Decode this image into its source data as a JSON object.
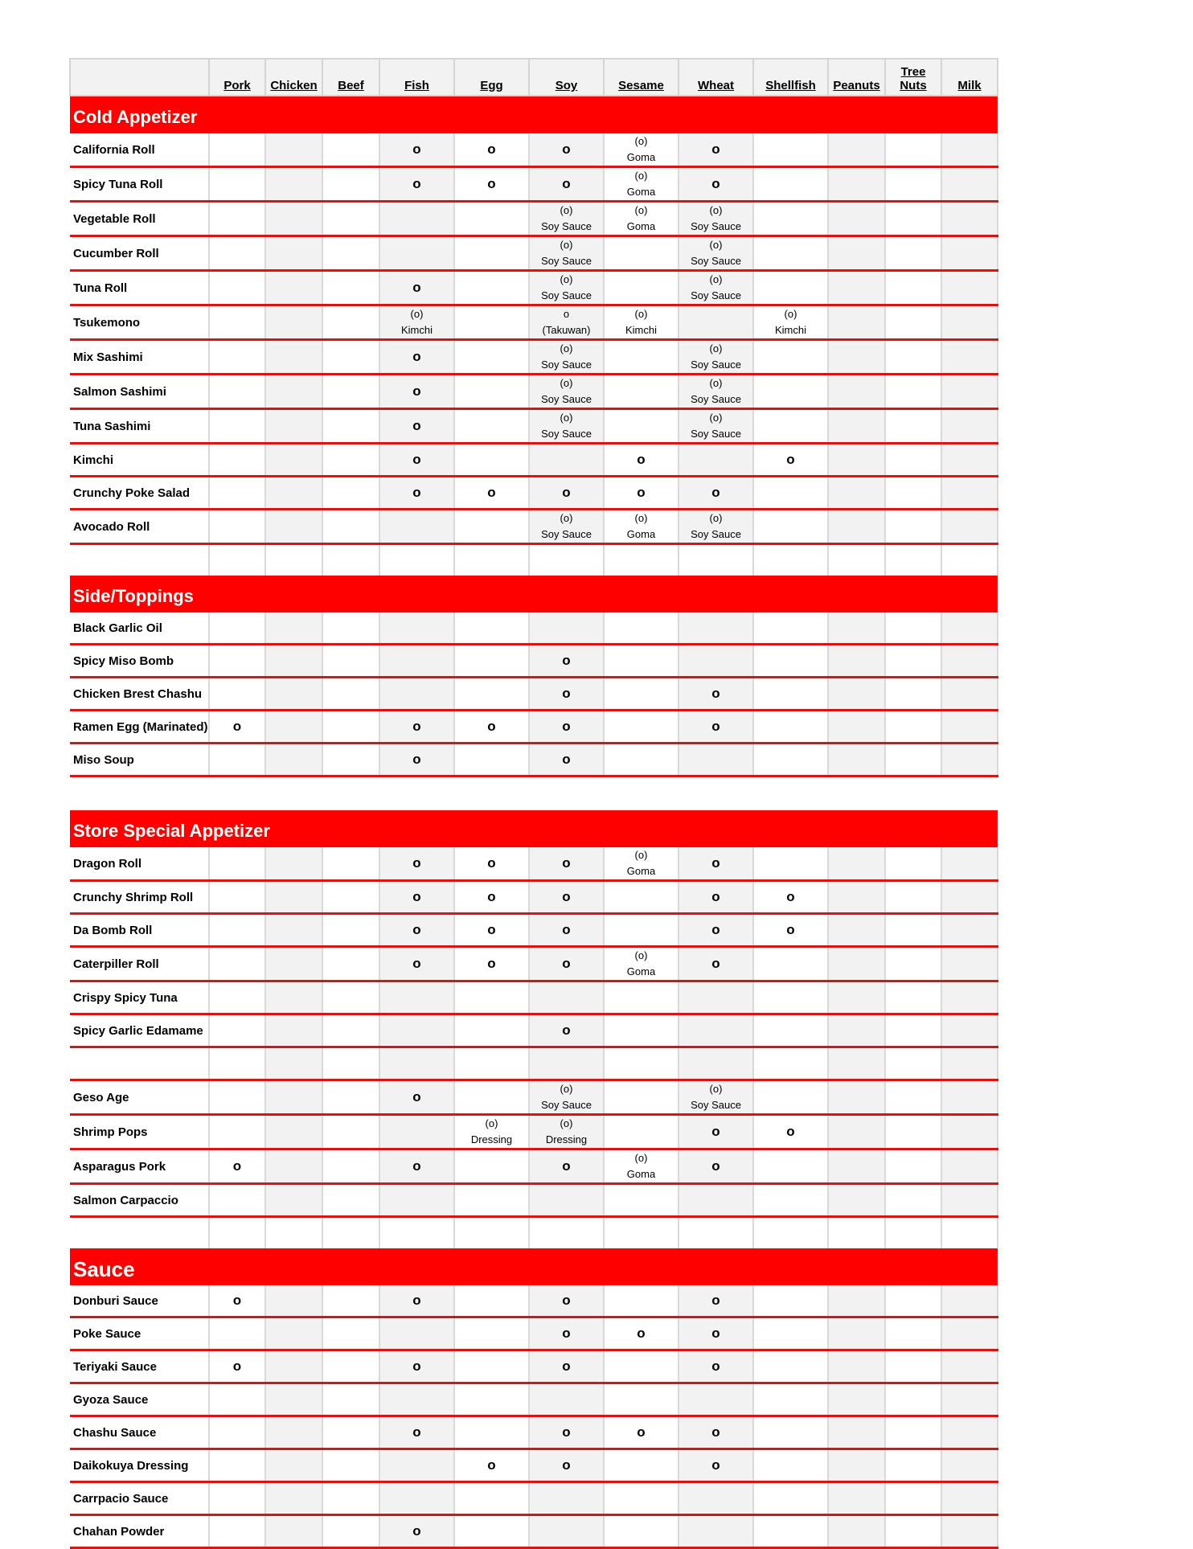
{
  "columns": [
    "",
    "Pork",
    "Chicken",
    "Beef",
    "Fish",
    "Egg",
    "Soy",
    "Sesame",
    "Wheat",
    "Shellfish",
    "Peanuts",
    "Tree Nuts",
    "Milk"
  ],
  "colors": {
    "section_bar": "#ff0000",
    "row_border": "#e41010",
    "shaded_cell": "#f2f2f2"
  },
  "sections": [
    {
      "title": "Cold Appetizer",
      "rows": [
        {
          "name": "California Roll",
          "cells": [
            "",
            "",
            "",
            "o",
            "o",
            "o",
            "(o)\nGoma",
            "o",
            "",
            "",
            "",
            ""
          ]
        },
        {
          "name": "Spicy Tuna Roll",
          "cells": [
            "",
            "",
            "",
            "o",
            "o",
            "o",
            "(o)\nGoma",
            "o",
            "",
            "",
            "",
            ""
          ]
        },
        {
          "name": "Vegetable Roll",
          "cells": [
            "",
            "",
            "",
            "",
            "",
            "(o)\nSoy Sauce",
            "(o)\nGoma",
            "(o)\nSoy Sauce",
            "",
            "",
            "",
            ""
          ]
        },
        {
          "name": "Cucumber Roll",
          "cells": [
            "",
            "",
            "",
            "",
            "",
            "(o)\nSoy Sauce",
            "",
            "(o)\nSoy Sauce",
            "",
            "",
            "",
            ""
          ]
        },
        {
          "name": "Tuna Roll",
          "cells": [
            "",
            "",
            "",
            "o",
            "",
            "(o)\nSoy Sauce",
            "",
            "(o)\nSoy Sauce",
            "",
            "",
            "",
            ""
          ]
        },
        {
          "name": "Tsukemono",
          "cells": [
            "",
            "",
            "",
            "(o)\nKimchi",
            "",
            "o\n(Takuwan)",
            "(o)\nKimchi",
            "",
            "(o)\nKimchi",
            "",
            "",
            ""
          ]
        },
        {
          "name": "Mix Sashimi",
          "cells": [
            "",
            "",
            "",
            "o",
            "",
            "(o)\nSoy Sauce",
            "",
            "(o)\nSoy Sauce",
            "",
            "",
            "",
            ""
          ]
        },
        {
          "name": "Salmon Sashimi",
          "cells": [
            "",
            "",
            "",
            "o",
            "",
            "(o)\nSoy Sauce",
            "",
            "(o)\nSoy Sauce",
            "",
            "",
            "",
            ""
          ]
        },
        {
          "name": "Tuna Sashimi",
          "cells": [
            "",
            "",
            "",
            "o",
            "",
            "(o)\nSoy Sauce",
            "",
            "(o)\nSoy Sauce",
            "",
            "",
            "",
            ""
          ]
        },
        {
          "name": "Kimchi",
          "cells": [
            "",
            "",
            "",
            "o",
            "",
            "",
            "o",
            "",
            "o",
            "",
            "",
            ""
          ]
        },
        {
          "name": "Crunchy Poke Salad",
          "cells": [
            "",
            "",
            "",
            "o",
            "o",
            "o",
            "o",
            "o",
            "",
            "",
            "",
            ""
          ]
        },
        {
          "name": "Avocado Roll",
          "cells": [
            "",
            "",
            "",
            "",
            "",
            "(o)\nSoy Sauce",
            "(o)\nGoma",
            "(o)\nSoy Sauce",
            "",
            "",
            "",
            ""
          ]
        },
        {
          "blank": true
        }
      ]
    },
    {
      "title": "Side/Toppings",
      "rows": [
        {
          "name": "Black Garlic Oil",
          "cells": [
            "",
            "",
            "",
            "",
            "",
            "",
            "",
            "",
            "",
            "",
            "",
            ""
          ]
        },
        {
          "name": "Spicy Miso Bomb",
          "cells": [
            "",
            "",
            "",
            "",
            "",
            "o",
            "",
            "",
            "",
            "",
            "",
            ""
          ]
        },
        {
          "name": "Chicken Brest Chashu",
          "cells": [
            "",
            "",
            "",
            "",
            "",
            "o",
            "",
            "o",
            "",
            "",
            "",
            ""
          ]
        },
        {
          "name": "Ramen Egg (Marinated)",
          "cells": [
            "o",
            "",
            "",
            "o",
            "o",
            "o",
            "",
            "o",
            "",
            "",
            "",
            ""
          ]
        },
        {
          "name": "Miso Soup",
          "cells": [
            "",
            "",
            "",
            "o",
            "",
            "o",
            "",
            "",
            "",
            "",
            "",
            ""
          ]
        },
        {
          "gap": true
        }
      ]
    },
    {
      "title": "Store Special  Appetizer",
      "rows": [
        {
          "name": "Dragon Roll",
          "cells": [
            "",
            "",
            "",
            "o",
            "o",
            "o",
            "(o)\nGoma",
            "o",
            "",
            "",
            "",
            ""
          ]
        },
        {
          "name": "Crunchy Shrimp Roll",
          "cells": [
            "",
            "",
            "",
            "o",
            "o",
            "o",
            "",
            "o",
            "o",
            "",
            "",
            ""
          ]
        },
        {
          "name": "Da Bomb Roll",
          "cells": [
            "",
            "",
            "",
            "o",
            "o",
            "o",
            "",
            "o",
            "o",
            "",
            "",
            ""
          ]
        },
        {
          "name": "Caterpiller Roll",
          "cells": [
            "",
            "",
            "",
            "o",
            "o",
            "o",
            "(o)\nGoma",
            "o",
            "",
            "",
            "",
            ""
          ]
        },
        {
          "name": "Crispy Spicy Tuna",
          "cells": [
            "",
            "",
            "",
            "",
            "",
            "",
            "",
            "",
            "",
            "",
            "",
            ""
          ]
        },
        {
          "name": "Spicy Garlic Edamame",
          "cells": [
            "",
            "",
            "",
            "",
            "",
            "o",
            "",
            "",
            "",
            "",
            "",
            ""
          ]
        },
        {
          "name": "",
          "cells": [
            "",
            "",
            "",
            "",
            "",
            "",
            "",
            "",
            "",
            "",
            "",
            ""
          ]
        },
        {
          "name": "Geso Age",
          "cells": [
            "",
            "",
            "",
            "o",
            "",
            "(o)\nSoy Sauce",
            "",
            "(o)\nSoy Sauce",
            "",
            "",
            "",
            ""
          ]
        },
        {
          "name": "Shrimp Pops",
          "cells": [
            "",
            "",
            "",
            "",
            "(o)\nDressing",
            "(o)\nDressing",
            "",
            "o",
            "o",
            "",
            "",
            ""
          ]
        },
        {
          "name": "Asparagus Pork",
          "cells": [
            "o",
            "",
            "",
            "o",
            "",
            "o",
            "(o)\nGoma",
            "o",
            "",
            "",
            "",
            ""
          ]
        },
        {
          "name": "Salmon Carpaccio",
          "cells": [
            "",
            "",
            "",
            "",
            "",
            "",
            "",
            "",
            "",
            "",
            "",
            ""
          ]
        },
        {
          "blank": true
        }
      ]
    },
    {
      "title": "Sauce",
      "big": true,
      "rows": [
        {
          "name": "Donburi Sauce",
          "cells": [
            "o",
            "",
            "",
            "o",
            "",
            "o",
            "",
            "o",
            "",
            "",
            "",
            ""
          ]
        },
        {
          "name": "Poke Sauce",
          "cells": [
            "",
            "",
            "",
            "",
            "",
            "o",
            "o",
            "o",
            "",
            "",
            "",
            ""
          ]
        },
        {
          "name": "Teriyaki Sauce",
          "cells": [
            "o",
            "",
            "",
            "o",
            "",
            "o",
            "",
            "o",
            "",
            "",
            "",
            ""
          ]
        },
        {
          "name": "Gyoza Sauce",
          "cells": [
            "",
            "",
            "",
            "",
            "",
            "",
            "",
            "",
            "",
            "",
            "",
            ""
          ]
        },
        {
          "name": "Chashu Sauce",
          "cells": [
            "",
            "",
            "",
            "o",
            "",
            "o",
            "o",
            "o",
            "",
            "",
            "",
            ""
          ]
        },
        {
          "name": "Daikokuya Dressing",
          "cells": [
            "",
            "",
            "",
            "",
            "o",
            "o",
            "",
            "o",
            "",
            "",
            "",
            ""
          ]
        },
        {
          "name": "Carrpacio Sauce",
          "cells": [
            "",
            "",
            "",
            "",
            "",
            "",
            "",
            "",
            "",
            "",
            "",
            ""
          ]
        },
        {
          "name": "Chahan Powder",
          "cells": [
            "",
            "",
            "",
            "o",
            "",
            "",
            "",
            "",
            "",
            "",
            "",
            ""
          ]
        }
      ]
    }
  ]
}
